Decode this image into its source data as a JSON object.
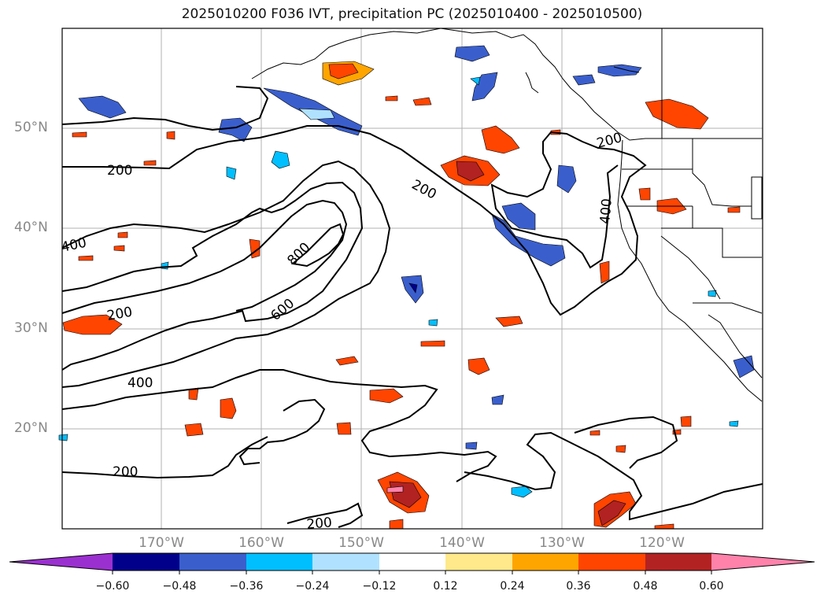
{
  "title": "2025010200 F036 IVT, precipitation PC (2025010400 - 2025010500)",
  "lat_labels": [
    "50°N",
    "40°N",
    "30°N",
    "20°N"
  ],
  "lon_labels": [
    "170°W",
    "160°W",
    "150°W",
    "140°W",
    "130°W",
    "120°W"
  ],
  "contour_labels": [
    "200",
    "200",
    "200",
    "200",
    "200",
    "200",
    "400",
    "400",
    "400",
    "600",
    "800"
  ],
  "colorbar": {
    "ticks": [
      "−0.60",
      "−0.48",
      "−0.36",
      "−0.24",
      "−0.12",
      "0.12",
      "0.24",
      "0.36",
      "0.48",
      "0.60"
    ],
    "colors": [
      "#9b30d0",
      "#00008b",
      "#3a5fcd",
      "#00bfff",
      "#b0e2ff",
      "#ffffff",
      "#ffe98a",
      "#ffa500",
      "#ff4500",
      "#b22222",
      "#ff82ab"
    ]
  },
  "fill_colors": {
    "neg_light": "#b0e2ff",
    "neg_mid": "#00bfff",
    "neg_strong": "#3a5fcd",
    "neg_max": "#00008b",
    "pos_light": "#ffe98a",
    "pos_mid": "#ffa500",
    "pos_strong": "#ff4500",
    "pos_max": "#b22222",
    "pos_extreme": "#ff82ab"
  },
  "map_extent": {
    "lon_min": -180,
    "lon_max": -110,
    "lat_min": 10,
    "lat_max": 60
  }
}
